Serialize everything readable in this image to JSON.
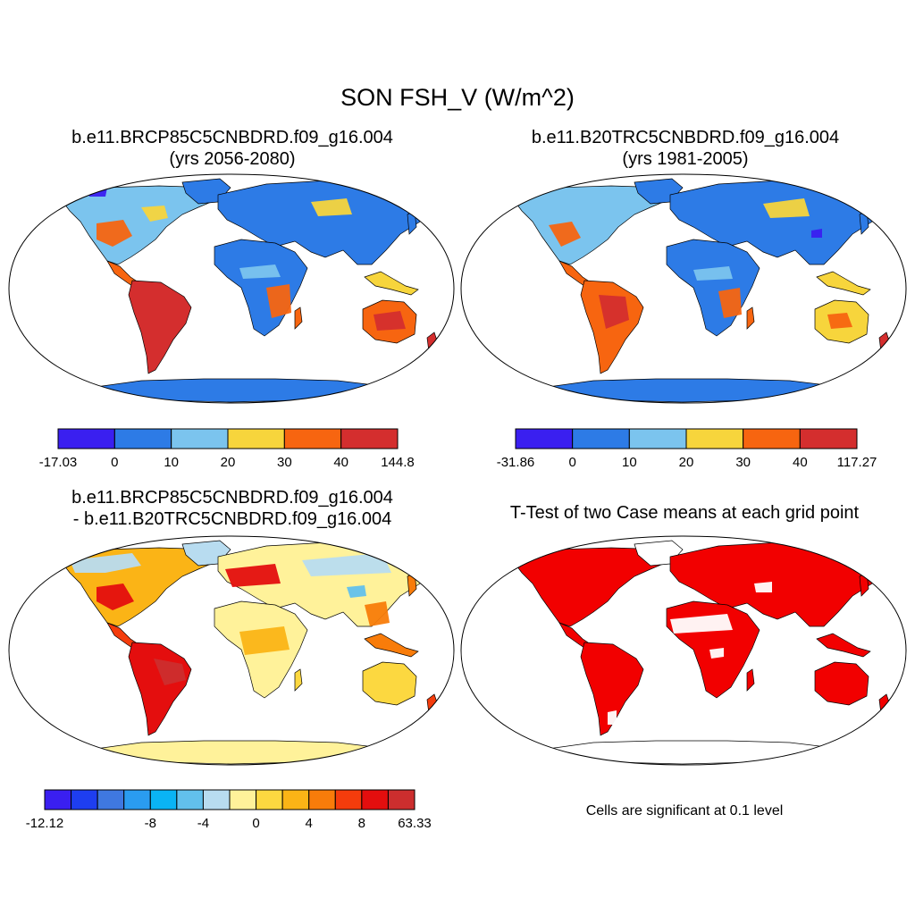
{
  "figure": {
    "title": "SON FSH_V (W/m^2)",
    "panels": [
      {
        "id": "case",
        "title_line1": "b.e11.BRCP85C5CNBDRD.f09_g16.004",
        "title_line2": "(yrs 2056-2080)",
        "colorbar": {
          "colors": [
            "#3a1ff0",
            "#2d7be6",
            "#7bc4ee",
            "#f7d53c",
            "#f76510",
            "#d42e2e"
          ],
          "labels": [
            "-17.03",
            "0",
            "10",
            "20",
            "30",
            "40",
            "144.8"
          ]
        }
      },
      {
        "id": "reference",
        "title_line1": "b.e11.B20TRC5CNBDRD.f09_g16.004",
        "title_line2": "(yrs 1981-2005)",
        "colorbar": {
          "colors": [
            "#3a1ff0",
            "#2d7be6",
            "#7bc4ee",
            "#f7d53c",
            "#f76510",
            "#d42e2e"
          ],
          "labels": [
            "-31.86",
            "0",
            "10",
            "20",
            "30",
            "40",
            "117.27"
          ]
        }
      },
      {
        "id": "difference",
        "title_line1": "b.e11.BRCP85C5CNBDRD.f09_g16.004",
        "title_line2": "- b.e11.B20TRC5CNBDRD.f09_g16.004",
        "colorbar": {
          "colors": [
            "#3a1ff0",
            "#1e3ef0",
            "#3f78e0",
            "#2a9cf0",
            "#0ab4f4",
            "#62c0ec",
            "#b8dcf0",
            "#fff29a",
            "#fcd840",
            "#fbb416",
            "#f87c0a",
            "#f43c0c",
            "#e40e0e",
            "#cc2e2e"
          ],
          "labels": [
            "-12.12",
            "-8",
            "-4",
            "0",
            "4",
            "8",
            "63.33"
          ]
        }
      },
      {
        "id": "ttest",
        "title_line1": "T-Test of two Case means at each grid point",
        "footnote": "Cells are significant at 0.1 level"
      }
    ],
    "colors": {
      "ocean": "#ffffff",
      "antarctica_case": "#2d7be6",
      "antarctica_diff": "#fff29a",
      "significant": "#f20000",
      "coastline": "#000000"
    }
  }
}
